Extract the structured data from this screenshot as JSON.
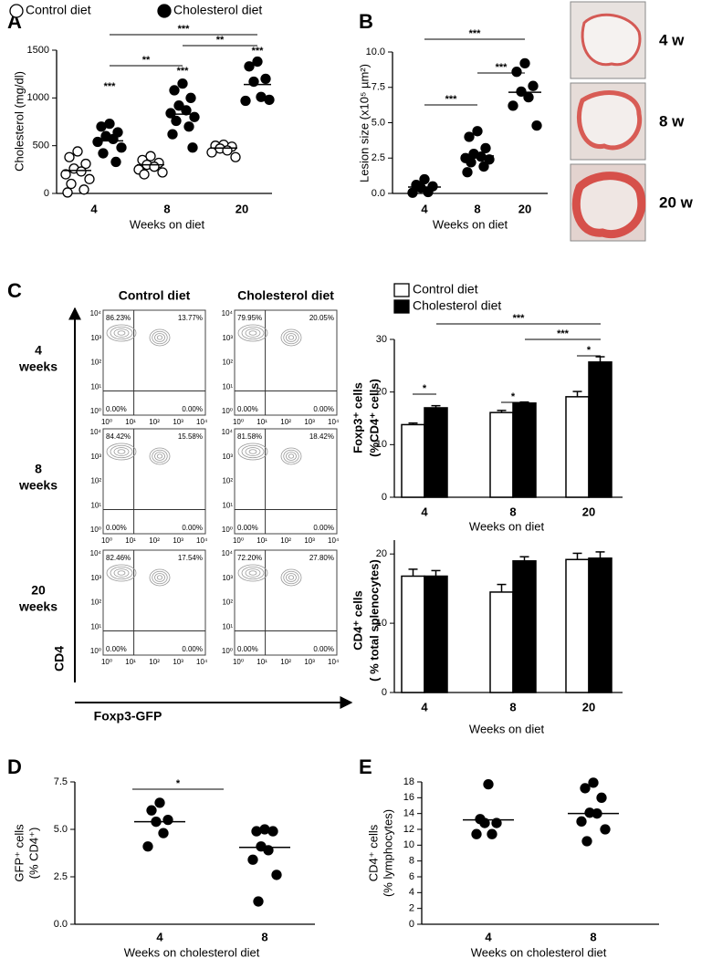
{
  "panel_labels": [
    "A",
    "B",
    "C",
    "D",
    "E"
  ],
  "histology": {
    "labels": [
      "4 w",
      "8 w",
      "20 w"
    ]
  },
  "flow": {
    "columns": [
      "Control diet",
      "Cholesterol diet"
    ],
    "rows": [
      [
        "4",
        "weeks"
      ],
      [
        "8",
        "weeks"
      ],
      [
        "20",
        "weeks"
      ]
    ],
    "quadrants": [
      [
        [
          "86.23%",
          "13.77%",
          "0.00%",
          "0.00%"
        ],
        [
          "79.95%",
          "20.05%",
          "0.00%",
          "0.00%"
        ]
      ],
      [
        [
          "84.42%",
          "15.58%",
          "0.00%",
          "0.00%"
        ],
        [
          "81.58%",
          "18.42%",
          "0.00%",
          "0.00%"
        ]
      ],
      [
        [
          "82.46%",
          "17.54%",
          "0.00%",
          "0.00%"
        ],
        [
          "72.20%",
          "27.80%",
          "0.00%",
          "0.00%"
        ]
      ]
    ],
    "ticks": [
      "10⁰",
      "10¹",
      "10²",
      "10³",
      "10⁴"
    ],
    "ylabel": "CD4",
    "xlabel": "Foxp3-GFP"
  },
  "chart_data": [
    {
      "type": "dotplot",
      "ylabel": "Cholesterol (mg/dl)",
      "xlabel": "Weeks on diet",
      "categories": [
        "4",
        "8",
        "20"
      ],
      "ylim": [
        0,
        1500
      ],
      "yticks": [
        0,
        500,
        1000,
        1500
      ],
      "series": [
        {
          "name": "Control diet",
          "color": "#000000",
          "filled": false,
          "values": [
            [
              440,
              380,
              310,
              260,
              230,
              200,
              150,
              100,
              40,
              10
            ],
            [
              390,
              350,
              320,
              300,
              280,
              250,
              220,
              200
            ],
            [
              510,
              500,
              490,
              470,
              450,
              430,
              380
            ]
          ],
          "means": [
            240,
            300,
            475
          ]
        },
        {
          "name": "Cholesterol diet",
          "color": "#000000",
          "filled": true,
          "values": [
            [
              730,
              700,
              640,
              600,
              570,
              540,
              480,
              420,
              330
            ],
            [
              1150,
              1080,
              1000,
              920,
              870,
              840,
              800,
              760,
              700,
              620,
              480
            ],
            [
              1380,
              1330,
              1200,
              1170,
              1010,
              970,
              980
            ]
          ],
          "means": [
            550,
            830,
            1140
          ]
        }
      ],
      "annotations": [
        "***",
        "***",
        "***",
        "***",
        "**",
        "**"
      ]
    },
    {
      "type": "dotplot",
      "ylabel": "Lesion size (x10⁵ µm²)",
      "xlabel": "Weeks on diet",
      "categories": [
        "4",
        "8",
        "20"
      ],
      "ylim": [
        0,
        10
      ],
      "yticks": [
        {
          "value": 0,
          "label": "0.0"
        },
        {
          "value": 2.5,
          "label": "2.5"
        },
        {
          "value": 5,
          "label": "5.0"
        },
        {
          "value": 7.5,
          "label": "7.5"
        },
        {
          "value": 10,
          "label": "10.0"
        }
      ],
      "series": [
        {
          "color": "#000000",
          "filled": true,
          "values": [
            [
              1.0,
              0.6,
              0.5,
              0.4,
              0.1,
              0.05
            ],
            [
              4.4,
              4.0,
              3.2,
              2.8,
              2.6,
              2.5,
              2.4,
              2.2,
              1.9,
              1.5
            ],
            [
              9.2,
              8.6,
              7.6,
              7.2,
              6.8,
              6.2,
              4.8
            ]
          ],
          "means": [
            0.45,
            2.65,
            7.15
          ]
        }
      ],
      "annotations": [
        "***",
        "***",
        "***"
      ]
    },
    {
      "type": "bar",
      "ylabel": [
        "Foxp3⁺ cells",
        "(%CD4⁺ cells)"
      ],
      "xlabel": "Weeks on diet",
      "categories": [
        "4",
        "8",
        "20"
      ],
      "ylim": [
        0,
        30
      ],
      "yticks": [
        0,
        10,
        20,
        30
      ],
      "series": [
        {
          "name": "Control diet",
          "color": "#ffffff",
          "values": [
            13.8,
            16.1,
            19.1
          ],
          "errors": [
            0.3,
            0.4,
            1.0
          ]
        },
        {
          "name": "Cholesterol diet",
          "color": "#000000",
          "values": [
            17.0,
            17.9,
            25.7
          ],
          "errors": [
            0.4,
            0.2,
            1.0
          ]
        }
      ],
      "annotations": [
        "*",
        "*",
        "***",
        "***",
        "*"
      ]
    },
    {
      "type": "bar",
      "ylabel": [
        "CD4⁺ cells",
        "( % total splenocytes)"
      ],
      "xlabel": "Weeks on diet",
      "categories": [
        "4",
        "8",
        "20"
      ],
      "ylim": [
        0,
        22
      ],
      "yticks": [
        0,
        10,
        20
      ],
      "series": [
        {
          "color": "#ffffff",
          "values": [
            16.8,
            14.5,
            19.2
          ],
          "errors": [
            1.0,
            1.1,
            0.9
          ]
        },
        {
          "color": "#000000",
          "values": [
            16.8,
            19.0,
            19.4
          ],
          "errors": [
            0.8,
            0.6,
            0.9
          ]
        }
      ]
    },
    {
      "type": "dotplot",
      "ylabel": [
        "GFP⁺ cells",
        "(% CD4⁺)"
      ],
      "xlabel": "Weeks on cholesterol diet",
      "categories": [
        "4",
        "8"
      ],
      "ylim": [
        0,
        7.5
      ],
      "yticks": [
        {
          "value": 0,
          "label": "0.0"
        },
        {
          "value": 2.5,
          "label": "2.5"
        },
        {
          "value": 5,
          "label": "5.0"
        },
        {
          "value": 7.5,
          "label": "7.5"
        }
      ],
      "series": [
        {
          "color": "#000000",
          "filled": true,
          "values": [
            [
              6.4,
              6.0,
              5.5,
              5.4,
              4.8,
              4.1
            ],
            [
              5.0,
              4.9,
              4.9,
              4.1,
              3.9,
              3.4,
              2.6,
              1.2
            ]
          ],
          "means": [
            5.4,
            4.05
          ]
        }
      ],
      "annotations": [
        "*"
      ]
    },
    {
      "type": "dotplot",
      "ylabel": [
        "CD4⁺ cells",
        "(% lymphocytes)"
      ],
      "xlabel": "Weeks on cholesterol diet",
      "categories": [
        "4",
        "8"
      ],
      "ylim": [
        0,
        18
      ],
      "yticks": [
        0,
        2,
        4,
        6,
        8,
        10,
        12,
        14,
        16,
        18
      ],
      "series": [
        {
          "color": "#000000",
          "filled": true,
          "values": [
            [
              17.7,
              13.3,
              12.8,
              12.8,
              11.4,
              11.4
            ],
            [
              17.9,
              17.2,
              16.0,
              14.1,
              14.0,
              13.0,
              12.0,
              10.5
            ]
          ],
          "means": [
            13.2,
            14.0
          ]
        }
      ]
    }
  ]
}
